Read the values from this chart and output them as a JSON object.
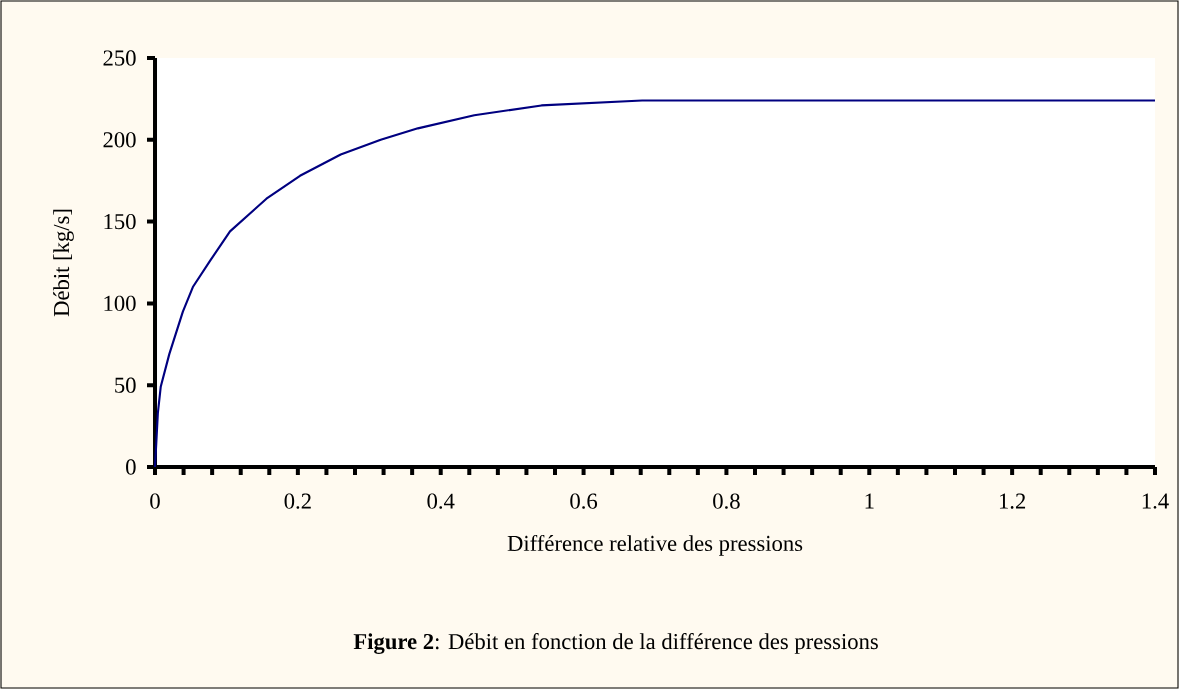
{
  "chart_data": {
    "type": "line",
    "xlabel": "Différence relative des pressions",
    "ylabel": "Débit [kg/s]",
    "annotations": [
      "**Figure 2**: Débit en fonction de la différence des pressions"
    ],
    "x": [
      0,
      0.004,
      0.008,
      0.02,
      0.039,
      0.053,
      0.077,
      0.105,
      0.156,
      0.203,
      0.26,
      0.316,
      0.368,
      0.447,
      0.541,
      0.682,
      0.8,
      1.0,
      1.2,
      1.4
    ],
    "series": [
      {
        "color": "#000080",
        "values": [
          0,
          33,
          49,
          69,
          95,
          110,
          126,
          144,
          164,
          178,
          191,
          200,
          207,
          215,
          221,
          224,
          224,
          224,
          224,
          224
        ]
      }
    ],
    "xlim": [
      0,
      1.4
    ],
    "ylim": [
      0,
      250
    ],
    "xticks": [
      0,
      0.2,
      0.4,
      0.6,
      0.8,
      1,
      1.2,
      1.4
    ],
    "yticks": [
      0,
      50,
      100,
      150,
      200,
      250
    ],
    "grid": false,
    "marker": "none",
    "line_style": "solid"
  }
}
